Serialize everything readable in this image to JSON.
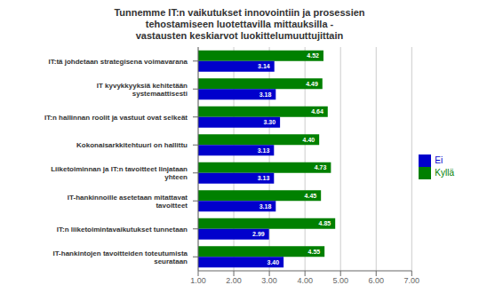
{
  "chart_data": {
    "type": "bar",
    "orientation": "horizontal",
    "title": "Tunnemme IT:n vaikutukset innovointiin ja prosessien\ntehostamiseen luotettavilla mittauksilla -\nvastausten keskiarvot luokittelumuuttujittain",
    "categories": [
      "IT:tä johdetaan strategisena voimavarana",
      "IT kyvykkyyksiä kehitetään\nsystemaattisesti",
      "IT:n hallinnan roolit ja vastuut ovat selkeät",
      "Kokonaisarkkitehtuuri on hallittu",
      "Liiketoiminnan ja IT:n tavoitteet linjataan\nyhteen",
      "IT-hankinnoille asetetaan mitattavat\ntavoitteet",
      "IT:n liiketoimintavaikutukset tunnetaan",
      "IT-hankintojen tavoitteiden toteutumista\nseurataan"
    ],
    "series": [
      {
        "name": "Kyllä",
        "color": "#008000",
        "values": [
          4.52,
          4.49,
          4.64,
          4.4,
          4.73,
          4.45,
          4.85,
          4.55
        ],
        "value_labels": [
          "4.52",
          "4.49",
          "4.64",
          "4.40",
          "4.73",
          "4.45",
          "4.85",
          "4.55"
        ]
      },
      {
        "name": "Ei",
        "color": "#0000CC",
        "values": [
          3.14,
          3.18,
          3.3,
          3.13,
          3.13,
          3.18,
          2.99,
          3.4
        ],
        "value_labels": [
          "3.14",
          "3.18",
          "3.30",
          "3.13",
          "3.13",
          "3.18",
          "2.99",
          "3.40"
        ]
      }
    ],
    "xlim": [
      1.0,
      7.0
    ],
    "xticks": [
      {
        "value": 1.0,
        "label": "1.00"
      },
      {
        "value": 2.0,
        "label": "2.00"
      },
      {
        "value": 3.0,
        "label": "3.00"
      },
      {
        "value": 4.0,
        "label": "4.00"
      },
      {
        "value": 5.0,
        "label": "5.00"
      },
      {
        "value": 6.0,
        "label": "6.00"
      },
      {
        "value": 7.0,
        "label": "7.00"
      }
    ],
    "grid": true,
    "legend": "right",
    "data_labels": true
  }
}
